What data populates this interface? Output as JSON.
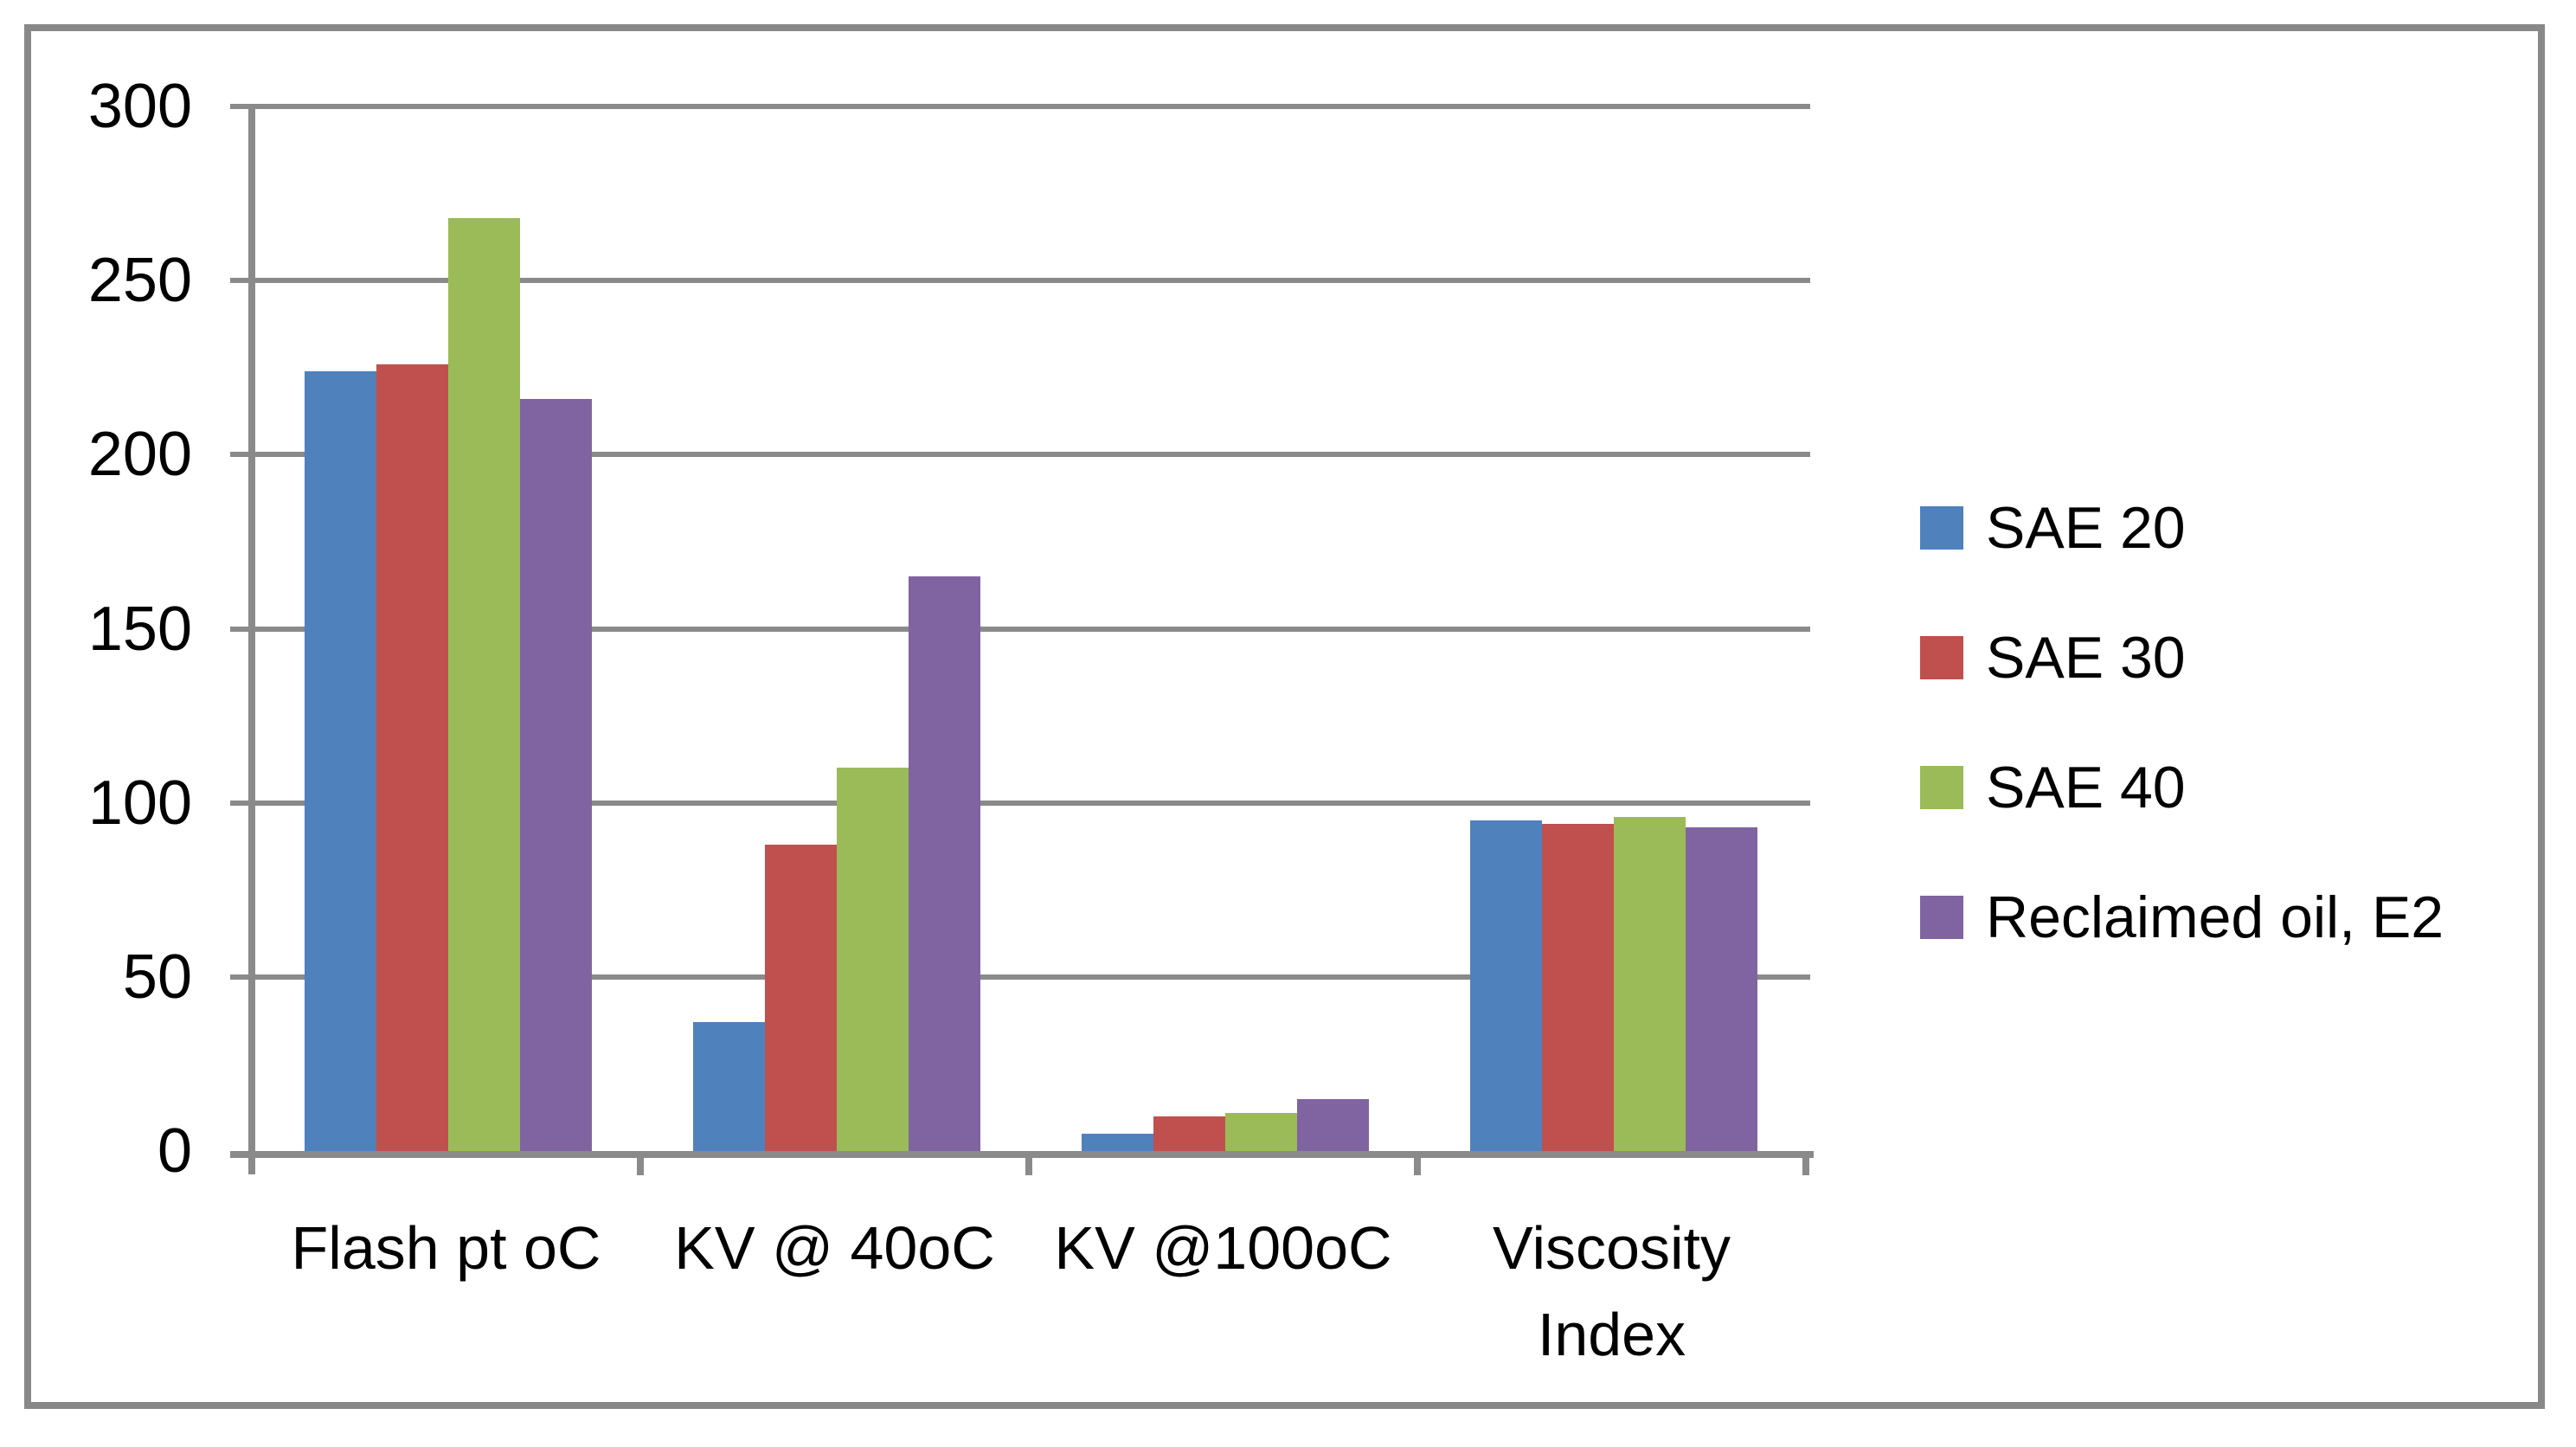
{
  "chart_data": {
    "type": "bar",
    "title": "",
    "categories": [
      "Flash pt oC",
      "KV @ 40oC",
      "KV @100oC",
      "Viscosity\nIndex"
    ],
    "series": [
      {
        "name": "SAE 20",
        "color": "#4F81BD",
        "values": [
          224,
          37,
          5,
          95
        ]
      },
      {
        "name": "SAE 30",
        "color": "#C0504D",
        "values": [
          226,
          88,
          10,
          94
        ]
      },
      {
        "name": "SAE 40",
        "color": "#9BBB59",
        "values": [
          268,
          110,
          11,
          96
        ]
      },
      {
        "name": "Reclaimed oil, E2",
        "color": "#8064A2",
        "values": [
          216,
          165,
          15,
          93
        ]
      }
    ],
    "ylim": [
      0,
      300
    ],
    "ytick_step": 50,
    "yticks": [
      0,
      50,
      100,
      150,
      200,
      250,
      300
    ],
    "grid": "horizontal",
    "legend_position": "right",
    "axis_color": "#888888",
    "background": "#FFFFFF"
  }
}
